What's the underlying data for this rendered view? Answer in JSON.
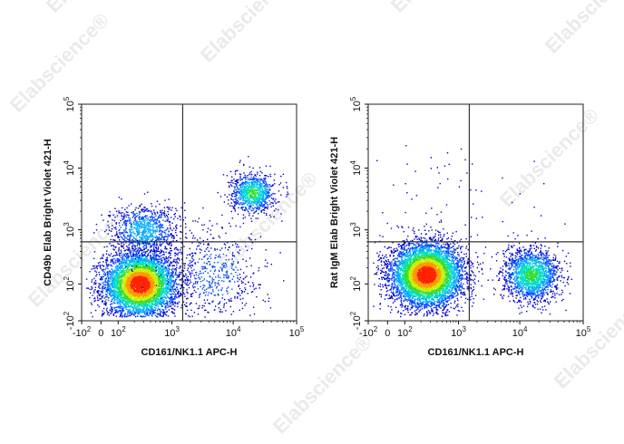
{
  "watermark": "Elabscience®",
  "colors": {
    "density_scale": [
      "#0000cc",
      "#0044ff",
      "#00aaff",
      "#00e0c0",
      "#33dd33",
      "#ccee00",
      "#ff9900",
      "#ff2200"
    ],
    "gate_line": "#333333",
    "frame": "#222222"
  },
  "chart_data": [
    {
      "type": "scatter",
      "subtype": "flow-cytometry pseudocolor density plot",
      "xlabel": "CD161/NK1.1 APC-H",
      "ylabel": "CD49b Elab Bright Violet 421-H",
      "x_scale": "biexponential",
      "y_scale": "biexponential",
      "xlim": [
        -100,
        100000
      ],
      "ylim": [
        -100,
        100000
      ],
      "x_ticks": [
        {
          "value": -100,
          "base": "-10",
          "exp": "2"
        },
        {
          "value": 0,
          "base": "0",
          "exp": ""
        },
        {
          "value": 100,
          "base": "10",
          "exp": "2"
        },
        {
          "value": 1000,
          "base": "10",
          "exp": "3"
        },
        {
          "value": 10000,
          "base": "10",
          "exp": "4"
        },
        {
          "value": 100000,
          "base": "10",
          "exp": "5"
        }
      ],
      "y_ticks": [
        {
          "value": -100,
          "base": "-10",
          "exp": "2"
        },
        {
          "value": 100,
          "base": "10",
          "exp": "2"
        },
        {
          "value": 1000,
          "base": "10",
          "exp": "3"
        },
        {
          "value": 10000,
          "base": "10",
          "exp": "4"
        },
        {
          "value": 100000,
          "base": "10",
          "exp": "5"
        }
      ],
      "quadrant_gate": {
        "x": 1500,
        "y": 600
      },
      "populations": [
        {
          "x": 250,
          "y": 100,
          "density": "high"
        },
        {
          "x": 300,
          "y": 1000,
          "density": "low"
        },
        {
          "x": 20000,
          "y": 4000,
          "density": "medium"
        },
        {
          "x": 5000,
          "y": 150,
          "density": "sparse"
        }
      ],
      "grid": false
    },
    {
      "type": "scatter",
      "subtype": "flow-cytometry pseudocolor density plot",
      "xlabel": "CD161/NK1.1 APC-H",
      "ylabel": "Rat IgM Elab Bright Violet 421-H",
      "x_scale": "biexponential",
      "y_scale": "biexponential",
      "xlim": [
        -100,
        100000
      ],
      "ylim": [
        -100,
        100000
      ],
      "x_ticks": [
        {
          "value": -100,
          "base": "-10",
          "exp": "2"
        },
        {
          "value": 0,
          "base": "0",
          "exp": ""
        },
        {
          "value": 100,
          "base": "10",
          "exp": "2"
        },
        {
          "value": 1000,
          "base": "10",
          "exp": "3"
        },
        {
          "value": 10000,
          "base": "10",
          "exp": "4"
        },
        {
          "value": 100000,
          "base": "10",
          "exp": "5"
        }
      ],
      "y_ticks": [
        {
          "value": -100,
          "base": "-10",
          "exp": "2"
        },
        {
          "value": 100,
          "base": "10",
          "exp": "2"
        },
        {
          "value": 1000,
          "base": "10",
          "exp": "3"
        },
        {
          "value": 10000,
          "base": "10",
          "exp": "4"
        },
        {
          "value": 100000,
          "base": "10",
          "exp": "5"
        }
      ],
      "quadrant_gate": {
        "x": 1500,
        "y": 600
      },
      "populations": [
        {
          "x": 250,
          "y": 150,
          "density": "high"
        },
        {
          "x": 15000,
          "y": 150,
          "density": "medium"
        },
        {
          "x": 1000,
          "y": 3000,
          "density": "sparse"
        }
      ],
      "grid": false
    }
  ]
}
